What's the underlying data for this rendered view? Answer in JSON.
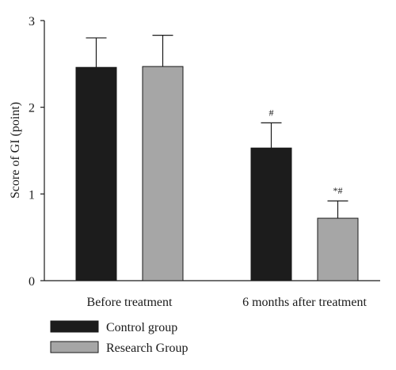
{
  "chart_data": {
    "type": "bar",
    "categories": [
      "Before treatment",
      "6 months after treatment"
    ],
    "series": [
      {
        "name": "Control group",
        "color": "#1c1c1c",
        "values": [
          2.46,
          1.53
        ],
        "errors": [
          0.34,
          0.29
        ],
        "annotations": [
          "",
          "#"
        ]
      },
      {
        "name": "Research Group",
        "color": "#a6a6a6",
        "values": [
          2.47,
          0.72
        ],
        "errors": [
          0.36,
          0.2
        ],
        "annotations": [
          "",
          "*#"
        ]
      }
    ],
    "ylabel": "Score of GI (point)",
    "xlabel": "",
    "ylim": [
      0,
      3
    ],
    "yticks": [
      "0",
      "1",
      "2",
      "3"
    ],
    "grid": false,
    "legend_position": "bottom-left"
  }
}
